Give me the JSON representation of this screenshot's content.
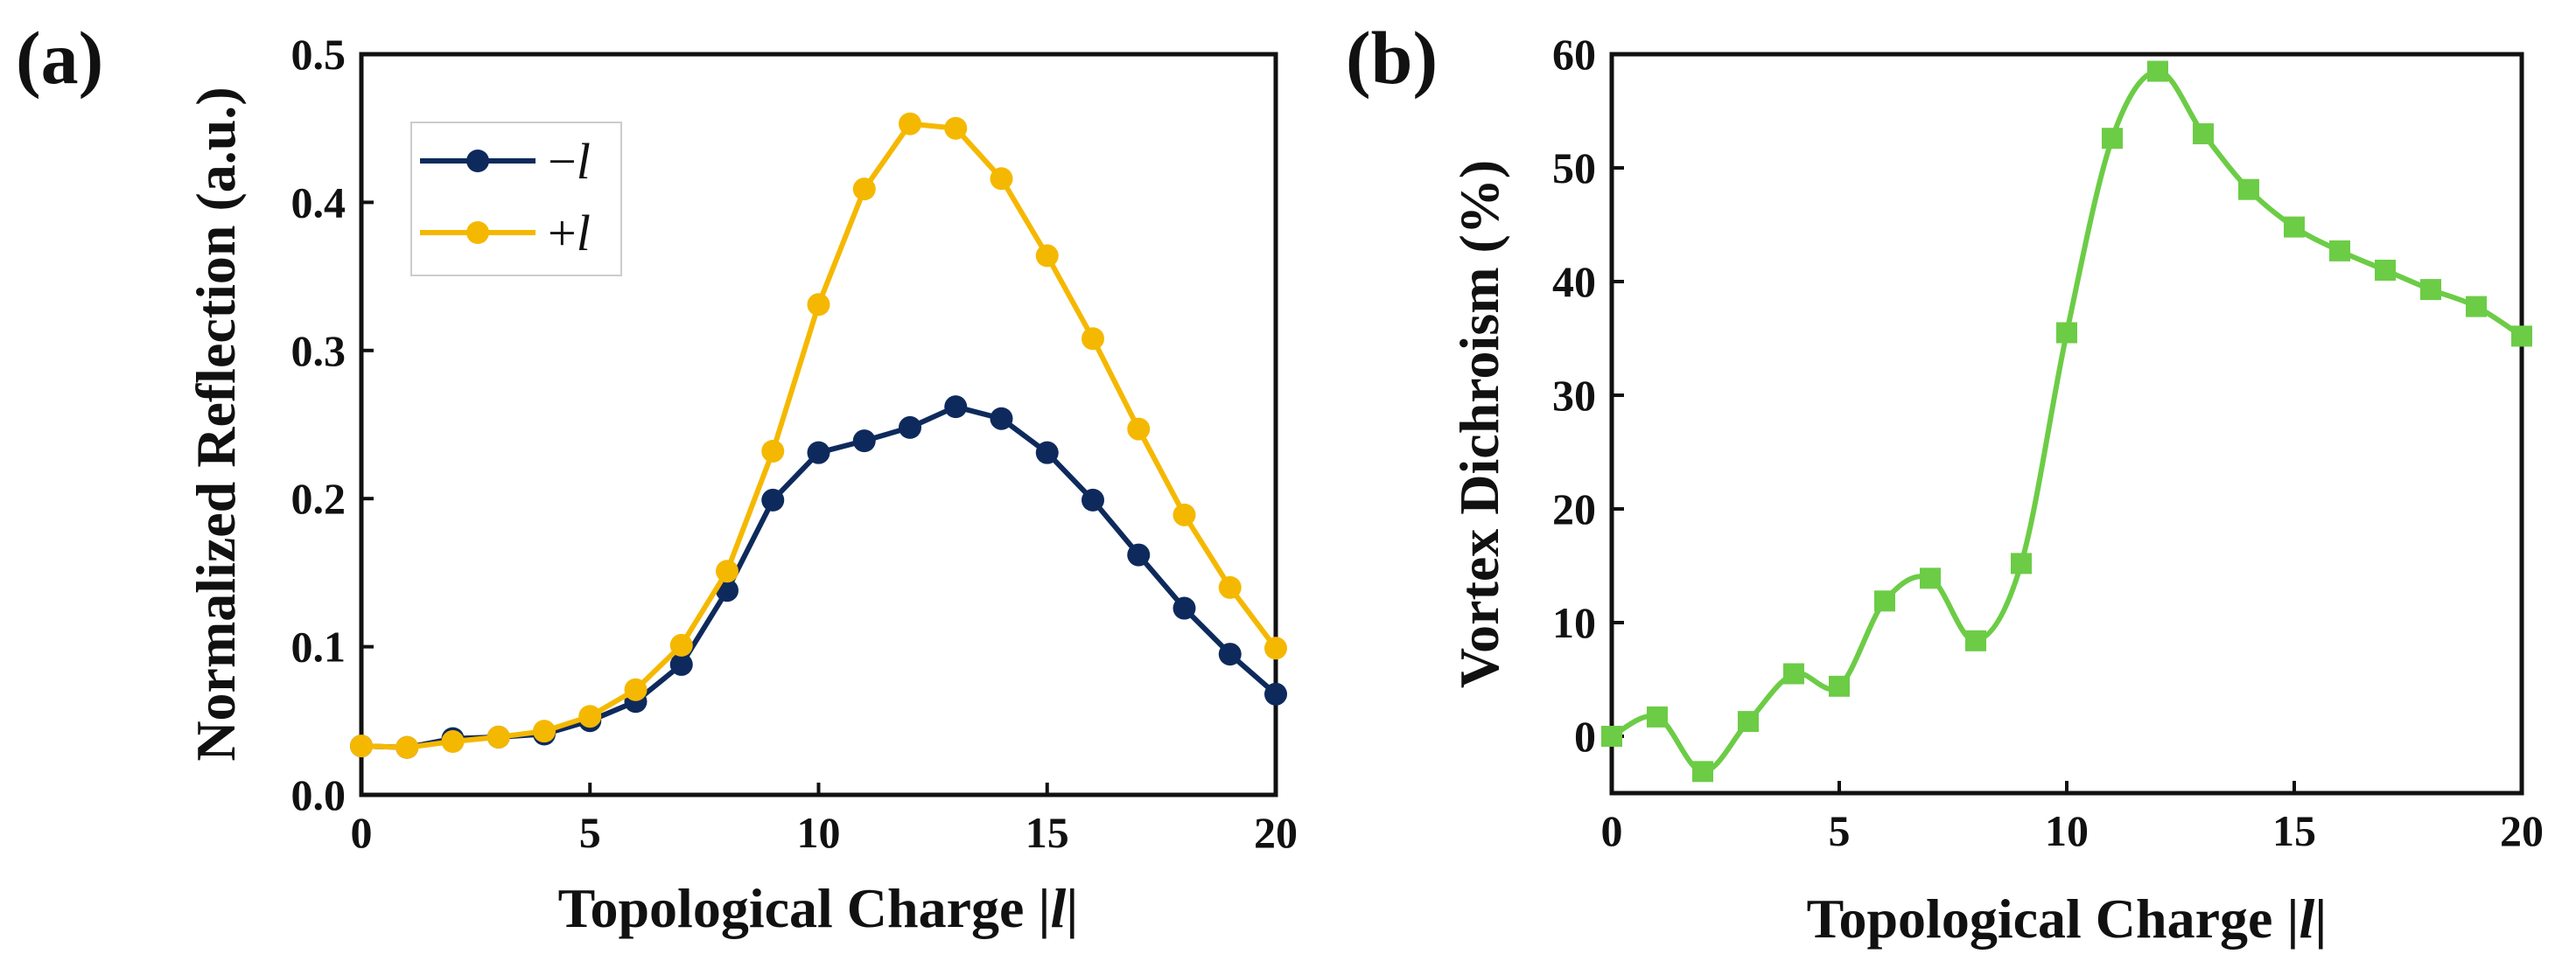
{
  "chart_data": [
    {
      "type": "line",
      "panel_label": "(a)",
      "title": "",
      "xlabel_prefix": "Topological Charge |",
      "xlabel_var": "l",
      "xlabel_suffix": "|",
      "ylabel": "Normalized Reflection (a.u.)",
      "xlim": [
        0,
        20
      ],
      "ylim": [
        0,
        0.5
      ],
      "xticks": [
        0,
        5,
        10,
        15,
        20
      ],
      "xtick_labels": [
        "0",
        "5",
        "10",
        "15",
        "20"
      ],
      "yticks": [
        0,
        0.1,
        0.2,
        0.3,
        0.4,
        0.5
      ],
      "ytick_labels": [
        "0.0",
        "0.1",
        "0.2",
        "0.3",
        "0.4",
        "0.5"
      ],
      "grid": false,
      "legend": "top-left",
      "x": [
        0,
        1,
        2,
        3,
        4,
        5,
        6,
        7,
        8,
        9,
        10,
        11,
        12,
        13,
        14,
        15,
        16,
        17,
        18,
        19,
        20
      ],
      "series": [
        {
          "name": "−l",
          "sign": "−",
          "var": "l",
          "color": "#0e2a5c",
          "marker": "circle",
          "values": [
            0.033,
            0.032,
            0.038,
            0.039,
            0.041,
            0.05,
            0.063,
            0.088,
            0.138,
            0.199,
            0.231,
            0.239,
            0.248,
            0.262,
            0.254,
            0.231,
            0.199,
            0.162,
            0.126,
            0.095,
            0.068
          ]
        },
        {
          "name": "+l",
          "sign": "+",
          "var": "l",
          "color": "#f5b800",
          "marker": "circle",
          "values": [
            0.033,
            0.032,
            0.036,
            0.039,
            0.043,
            0.053,
            0.071,
            0.101,
            0.151,
            0.232,
            0.331,
            0.409,
            0.453,
            0.45,
            0.416,
            0.364,
            0.308,
            0.247,
            0.189,
            0.14,
            0.099
          ]
        }
      ]
    },
    {
      "type": "line",
      "panel_label": "(b)",
      "title": "",
      "xlabel_prefix": "Topological Charge |",
      "xlabel_var": "l",
      "xlabel_suffix": "|",
      "ylabel": "Vortex Dichroism (%)",
      "xlim": [
        0,
        20
      ],
      "ylim": [
        -5,
        60
      ],
      "xticks": [
        0,
        5,
        10,
        15,
        20
      ],
      "xtick_labels": [
        "0",
        "5",
        "10",
        "15",
        "20"
      ],
      "yticks": [
        0,
        10,
        20,
        30,
        40,
        50,
        60
      ],
      "ytick_labels": [
        "0",
        "10",
        "20",
        "30",
        "40",
        "50",
        "60"
      ],
      "grid": false,
      "legend": "none",
      "x": [
        0,
        1,
        2,
        3,
        4,
        5,
        6,
        7,
        8,
        9,
        10,
        11,
        12,
        13,
        14,
        15,
        16,
        17,
        18,
        19,
        20
      ],
      "series": [
        {
          "name": "Vortex Dichroism",
          "color": "#6ccc46",
          "marker": "square",
          "smooth": true,
          "values": [
            0.0,
            1.7,
            -3.1,
            1.3,
            5.5,
            4.4,
            11.9,
            13.9,
            8.4,
            15.2,
            35.5,
            52.6,
            58.5,
            53.0,
            48.1,
            44.8,
            42.7,
            41.0,
            39.3,
            37.8,
            35.2
          ]
        }
      ]
    }
  ]
}
